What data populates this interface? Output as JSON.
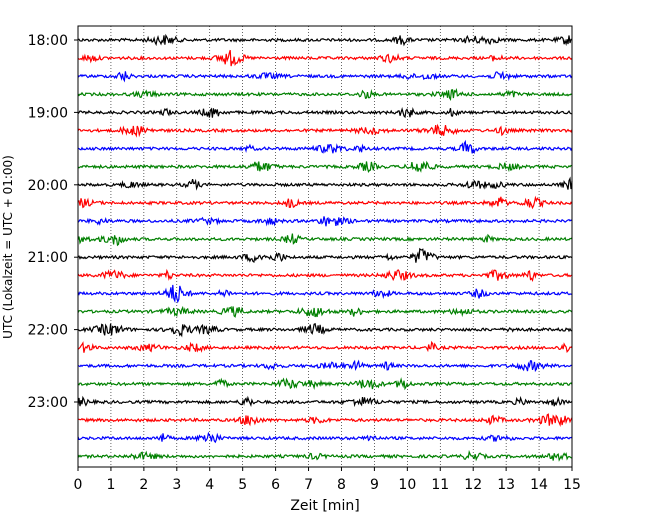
{
  "chart_data": {
    "type": "line",
    "title": "",
    "xlabel": "Zeit  [min]",
    "ylabel": "UTC (Lokalzeit = UTC + 01:00)",
    "xlim": [
      0,
      15
    ],
    "x_ticks": [
      0,
      1,
      2,
      3,
      4,
      5,
      6,
      7,
      8,
      9,
      10,
      11,
      12,
      13,
      14,
      15
    ],
    "x_tick_labels": [
      "0",
      "1",
      "2",
      "3",
      "4",
      "5",
      "6",
      "7",
      "8",
      "9",
      "10",
      "11",
      "12",
      "13",
      "14",
      "15"
    ],
    "y_tick_labels": [
      "18:00",
      "19:00",
      "20:00",
      "21:00",
      "22:00",
      "23:00"
    ],
    "trace_interval_minutes": 15,
    "first_trace_time": "18:00",
    "trace_count": 24,
    "trace_color_cycle": [
      "#000000",
      "#ff0000",
      "#0000ff",
      "#008000"
    ],
    "vertical_grid": "dotted",
    "legend": "none"
  }
}
